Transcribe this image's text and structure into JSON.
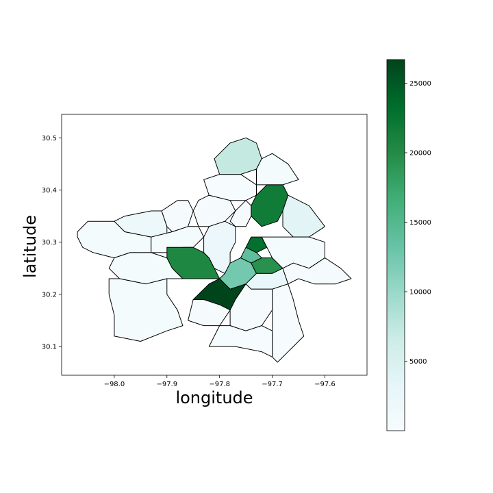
{
  "chart_data": {
    "type": "choropleth",
    "xlabel": "longitude",
    "ylabel": "latitude",
    "xlim": [
      -98.1,
      -97.52
    ],
    "ylim": [
      30.045,
      30.545
    ],
    "x_ticks": [
      {
        "value": -98.0,
        "label": "−98.0"
      },
      {
        "value": -97.9,
        "label": "−97.9"
      },
      {
        "value": -97.8,
        "label": "−97.8"
      },
      {
        "value": -97.7,
        "label": "−97.7"
      },
      {
        "value": -97.6,
        "label": "−97.6"
      }
    ],
    "y_ticks": [
      {
        "value": 30.1,
        "label": "30.1"
      },
      {
        "value": 30.2,
        "label": "30.2"
      },
      {
        "value": 30.3,
        "label": "30.3"
      },
      {
        "value": 30.4,
        "label": "30.4"
      },
      {
        "value": 30.5,
        "label": "30.5"
      }
    ],
    "grid": false,
    "colormap": "Greens",
    "colormap_stops": [
      "#f7fcf5",
      "#e5f5e0",
      "#c7e9c0",
      "#a1d99b",
      "#74c476",
      "#41ab5d",
      "#238b45",
      "#006d2c",
      "#00441b"
    ],
    "colormap_used": [
      "#f7fcfd",
      "#e5f5f9",
      "#ccece6",
      "#99d8c9",
      "#66c2a4",
      "#41ae76",
      "#238b45",
      "#006d2c",
      "#00441b"
    ],
    "colorbar": {
      "min": 0,
      "max": 26700,
      "ticks": [
        {
          "value": 5000,
          "label": "5000"
        },
        {
          "value": 10000,
          "label": "10000"
        },
        {
          "value": 15000,
          "label": "15000"
        },
        {
          "value": 20000,
          "label": "20000"
        },
        {
          "value": 25000,
          "label": "25000"
        }
      ]
    },
    "regions": [
      {
        "id": "nw-outer",
        "value": 600,
        "polygon": [
          [
            -98.07,
            30.32
          ],
          [
            -98.05,
            30.34
          ],
          [
            -98.0,
            30.34
          ],
          [
            -97.98,
            30.32
          ],
          [
            -97.93,
            30.31
          ],
          [
            -97.93,
            30.28
          ],
          [
            -97.97,
            30.28
          ],
          [
            -98.0,
            30.27
          ],
          [
            -98.04,
            30.28
          ],
          [
            -98.06,
            30.29
          ],
          [
            -98.07,
            30.31
          ]
        ]
      },
      {
        "id": "nw-top",
        "value": 1800,
        "polygon": [
          [
            -98.0,
            30.34
          ],
          [
            -97.98,
            30.35
          ],
          [
            -97.93,
            30.36
          ],
          [
            -97.91,
            30.36
          ],
          [
            -97.9,
            30.33
          ],
          [
            -97.9,
            30.31
          ],
          [
            -97.93,
            30.31
          ],
          [
            -97.98,
            30.32
          ]
        ]
      },
      {
        "id": "west-hill",
        "value": 400,
        "polygon": [
          [
            -97.88,
            30.38
          ],
          [
            -97.86,
            30.38
          ],
          [
            -97.85,
            30.36
          ],
          [
            -97.86,
            30.33
          ],
          [
            -97.89,
            30.32
          ],
          [
            -97.9,
            30.33
          ],
          [
            -97.91,
            30.36
          ]
        ]
      },
      {
        "id": "west-mid",
        "value": 500,
        "polygon": [
          [
            -97.93,
            30.31
          ],
          [
            -97.89,
            30.32
          ],
          [
            -97.86,
            30.33
          ],
          [
            -97.84,
            30.33
          ],
          [
            -97.83,
            30.31
          ],
          [
            -97.85,
            30.29
          ],
          [
            -97.87,
            30.29
          ],
          [
            -97.9,
            30.28
          ],
          [
            -97.93,
            30.28
          ]
        ]
      },
      {
        "id": "sw-big",
        "value": 20500,
        "polygon": [
          [
            -97.9,
            30.29
          ],
          [
            -97.87,
            30.29
          ],
          [
            -97.85,
            30.29
          ],
          [
            -97.83,
            30.28
          ],
          [
            -97.82,
            30.27
          ],
          [
            -97.81,
            30.25
          ],
          [
            -97.8,
            30.23
          ],
          [
            -97.84,
            30.23
          ],
          [
            -97.87,
            30.23
          ],
          [
            -97.89,
            30.25
          ],
          [
            -97.9,
            30.27
          ]
        ]
      },
      {
        "id": "west-lower",
        "value": 700,
        "polygon": [
          [
            -98.0,
            30.27
          ],
          [
            -97.97,
            30.28
          ],
          [
            -97.93,
            30.28
          ],
          [
            -97.9,
            30.27
          ],
          [
            -97.89,
            30.25
          ],
          [
            -97.87,
            30.23
          ],
          [
            -97.9,
            30.23
          ],
          [
            -97.94,
            30.22
          ],
          [
            -97.99,
            30.23
          ],
          [
            -98.01,
            30.25
          ]
        ]
      },
      {
        "id": "sw-outer",
        "value": 500,
        "polygon": [
          [
            -98.01,
            30.23
          ],
          [
            -97.99,
            30.23
          ],
          [
            -97.94,
            30.22
          ],
          [
            -97.9,
            30.23
          ],
          [
            -97.9,
            30.2
          ],
          [
            -97.88,
            30.17
          ],
          [
            -97.87,
            30.14
          ],
          [
            -97.9,
            30.13
          ],
          [
            -97.95,
            30.11
          ],
          [
            -98.0,
            30.12
          ],
          [
            -98.0,
            30.16
          ],
          [
            -98.01,
            30.2
          ]
        ]
      },
      {
        "id": "nw-north",
        "value": 300,
        "polygon": [
          [
            -97.85,
            30.36
          ],
          [
            -97.84,
            30.38
          ],
          [
            -97.82,
            30.39
          ],
          [
            -97.78,
            30.38
          ],
          [
            -97.77,
            30.36
          ],
          [
            -97.79,
            30.34
          ],
          [
            -97.82,
            30.33
          ],
          [
            -97.84,
            30.33
          ]
        ]
      },
      {
        "id": "north-top",
        "value": 200,
        "polygon": [
          [
            -97.82,
            30.39
          ],
          [
            -97.83,
            30.42
          ],
          [
            -97.8,
            30.43
          ],
          [
            -97.76,
            30.43
          ],
          [
            -97.73,
            30.41
          ],
          [
            -97.73,
            30.39
          ],
          [
            -97.75,
            30.38
          ],
          [
            -97.78,
            30.38
          ]
        ]
      },
      {
        "id": "north-tip",
        "value": 7200,
        "polygon": [
          [
            -97.8,
            30.43
          ],
          [
            -97.81,
            30.46
          ],
          [
            -97.78,
            30.49
          ],
          [
            -97.75,
            30.5
          ],
          [
            -97.73,
            30.49
          ],
          [
            -97.72,
            30.46
          ],
          [
            -97.73,
            30.44
          ],
          [
            -97.76,
            30.43
          ]
        ]
      },
      {
        "id": "ne-outer",
        "value": 700,
        "polygon": [
          [
            -97.73,
            30.44
          ],
          [
            -97.72,
            30.46
          ],
          [
            -97.7,
            30.47
          ],
          [
            -97.67,
            30.45
          ],
          [
            -97.65,
            30.42
          ],
          [
            -97.68,
            30.41
          ],
          [
            -97.71,
            30.41
          ],
          [
            -97.73,
            30.41
          ]
        ]
      },
      {
        "id": "ne-green",
        "value": 21700,
        "polygon": [
          [
            -97.73,
            30.39
          ],
          [
            -97.71,
            30.41
          ],
          [
            -97.68,
            30.41
          ],
          [
            -97.67,
            30.39
          ],
          [
            -97.68,
            30.36
          ],
          [
            -97.69,
            30.34
          ],
          [
            -97.72,
            30.33
          ],
          [
            -97.74,
            30.35
          ],
          [
            -97.74,
            30.37
          ]
        ]
      },
      {
        "id": "east-light",
        "value": 3800,
        "polygon": [
          [
            -97.67,
            30.39
          ],
          [
            -97.63,
            30.37
          ],
          [
            -97.6,
            30.33
          ],
          [
            -97.63,
            30.31
          ],
          [
            -97.66,
            30.31
          ],
          [
            -97.68,
            30.33
          ],
          [
            -97.68,
            30.36
          ]
        ]
      },
      {
        "id": "north-mid",
        "value": 300,
        "polygon": [
          [
            -97.77,
            30.36
          ],
          [
            -97.75,
            30.38
          ],
          [
            -97.74,
            30.37
          ],
          [
            -97.74,
            30.35
          ],
          [
            -97.75,
            30.33
          ],
          [
            -97.77,
            30.33
          ],
          [
            -97.78,
            30.34
          ]
        ]
      },
      {
        "id": "central-west",
        "value": 2200,
        "polygon": [
          [
            -97.82,
            30.33
          ],
          [
            -97.79,
            30.34
          ],
          [
            -97.77,
            30.33
          ],
          [
            -97.77,
            30.3
          ],
          [
            -97.78,
            30.28
          ],
          [
            -97.78,
            30.26
          ],
          [
            -97.79,
            30.24
          ],
          [
            -97.81,
            30.25
          ],
          [
            -97.82,
            30.27
          ],
          [
            -97.83,
            30.28
          ],
          [
            -97.83,
            30.31
          ]
        ]
      },
      {
        "id": "central-dark",
        "value": 23000,
        "polygon": [
          [
            -97.74,
            30.31
          ],
          [
            -97.72,
            30.31
          ],
          [
            -97.71,
            30.29
          ],
          [
            -97.73,
            30.28
          ],
          [
            -97.75,
            30.29
          ]
        ]
      },
      {
        "id": "central-small",
        "value": 14000,
        "polygon": [
          [
            -97.75,
            30.29
          ],
          [
            -97.73,
            30.28
          ],
          [
            -97.72,
            30.27
          ],
          [
            -97.74,
            30.26
          ],
          [
            -97.76,
            30.27
          ]
        ]
      },
      {
        "id": "central-lower",
        "value": 12500,
        "polygon": [
          [
            -97.78,
            30.26
          ],
          [
            -97.76,
            30.27
          ],
          [
            -97.74,
            30.26
          ],
          [
            -97.73,
            30.24
          ],
          [
            -97.75,
            30.22
          ],
          [
            -97.78,
            30.21
          ],
          [
            -97.8,
            30.23
          ],
          [
            -97.79,
            30.24
          ]
        ]
      },
      {
        "id": "east-central",
        "value": 19500,
        "polygon": [
          [
            -97.72,
            30.27
          ],
          [
            -97.7,
            30.27
          ],
          [
            -97.68,
            30.25
          ],
          [
            -97.7,
            30.24
          ],
          [
            -97.73,
            30.24
          ],
          [
            -97.74,
            30.26
          ]
        ]
      },
      {
        "id": "east-mid",
        "value": 500,
        "polygon": [
          [
            -97.72,
            30.31
          ],
          [
            -97.66,
            30.31
          ],
          [
            -97.63,
            30.31
          ],
          [
            -97.6,
            30.3
          ],
          [
            -97.6,
            30.27
          ],
          [
            -97.63,
            30.25
          ],
          [
            -97.66,
            30.26
          ],
          [
            -97.68,
            30.25
          ],
          [
            -97.7,
            30.27
          ],
          [
            -97.71,
            30.29
          ]
        ]
      },
      {
        "id": "south-light",
        "value": 2400,
        "polygon": [
          [
            -97.73,
            30.24
          ],
          [
            -97.7,
            30.24
          ],
          [
            -97.68,
            30.25
          ],
          [
            -97.67,
            30.22
          ],
          [
            -97.7,
            30.21
          ],
          [
            -97.74,
            30.21
          ],
          [
            -97.75,
            30.22
          ]
        ]
      },
      {
        "id": "east-outer",
        "value": 400,
        "polygon": [
          [
            -97.66,
            30.26
          ],
          [
            -97.63,
            30.25
          ],
          [
            -97.6,
            30.27
          ],
          [
            -97.57,
            30.25
          ],
          [
            -97.55,
            30.23
          ],
          [
            -97.58,
            30.22
          ],
          [
            -97.62,
            30.22
          ],
          [
            -97.65,
            30.23
          ],
          [
            -97.67,
            30.22
          ],
          [
            -97.68,
            30.25
          ]
        ]
      },
      {
        "id": "south-dark",
        "value": 26700,
        "polygon": [
          [
            -97.82,
            30.22
          ],
          [
            -97.8,
            30.23
          ],
          [
            -97.78,
            30.21
          ],
          [
            -97.75,
            30.22
          ],
          [
            -97.77,
            30.19
          ],
          [
            -97.78,
            30.17
          ],
          [
            -97.83,
            30.19
          ],
          [
            -97.85,
            30.19
          ]
        ]
      },
      {
        "id": "south-west",
        "value": 300,
        "polygon": [
          [
            -97.85,
            30.19
          ],
          [
            -97.83,
            30.19
          ],
          [
            -97.8,
            30.18
          ],
          [
            -97.78,
            30.17
          ],
          [
            -97.8,
            30.14
          ],
          [
            -97.83,
            30.14
          ],
          [
            -97.86,
            30.15
          ]
        ]
      },
      {
        "id": "south-mid",
        "value": 300,
        "polygon": [
          [
            -97.78,
            30.17
          ],
          [
            -97.77,
            30.19
          ],
          [
            -97.75,
            30.22
          ],
          [
            -97.74,
            30.21
          ],
          [
            -97.7,
            30.21
          ],
          [
            -97.7,
            30.17
          ],
          [
            -97.72,
            30.14
          ],
          [
            -97.75,
            30.13
          ],
          [
            -97.78,
            30.14
          ]
        ]
      },
      {
        "id": "south-far",
        "value": 200,
        "polygon": [
          [
            -97.8,
            30.14
          ],
          [
            -97.78,
            30.14
          ],
          [
            -97.75,
            30.13
          ],
          [
            -97.72,
            30.14
          ],
          [
            -97.7,
            30.13
          ],
          [
            -97.7,
            30.08
          ],
          [
            -97.72,
            30.09
          ],
          [
            -97.77,
            30.1
          ],
          [
            -97.82,
            30.1
          ]
        ]
      },
      {
        "id": "se-outer",
        "value": 200,
        "polygon": [
          [
            -97.7,
            30.21
          ],
          [
            -97.67,
            30.22
          ],
          [
            -97.66,
            30.19
          ],
          [
            -97.65,
            30.15
          ],
          [
            -97.64,
            30.12
          ],
          [
            -97.67,
            30.09
          ],
          [
            -97.69,
            30.07
          ],
          [
            -97.7,
            30.08
          ],
          [
            -97.7,
            30.13
          ],
          [
            -97.7,
            30.17
          ]
        ]
      }
    ]
  }
}
